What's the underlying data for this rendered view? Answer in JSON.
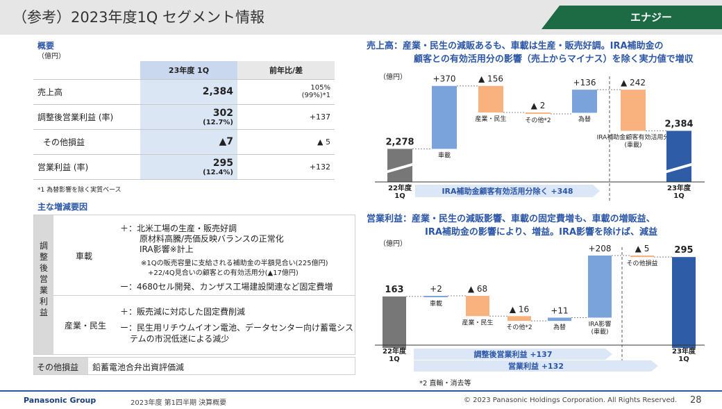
{
  "header": {
    "title": "（参考）2023年度1Q セグメント情報",
    "segment": "エナジー"
  },
  "overview": {
    "heading": "概要",
    "unit": "（億円）",
    "col_current": "23年度 1Q",
    "col_yoy": "前年比/差",
    "rows": [
      {
        "label": "売上高",
        "value": "2,384",
        "sub": "",
        "yoy": "105%",
        "yoy2": "(99%)*1"
      },
      {
        "label": "調整後営業利益 (率)",
        "value": "302",
        "sub": "(12.7%)",
        "yoy": "+137",
        "yoy2": ""
      },
      {
        "label": "その他損益",
        "value": "▲7",
        "sub": "",
        "yoy": "▲ 5",
        "yoy2": ""
      },
      {
        "label": "営業利益 (率)",
        "value": "295",
        "sub": "(12.4%)",
        "yoy": "+132",
        "yoy2": ""
      }
    ],
    "footnote": "*1 為替影響を除く実質ベース"
  },
  "factors": {
    "heading": "主な増減要因",
    "side_label": "調整後営業利益",
    "automotive": {
      "label": "車載",
      "plus_1": "＋：北米工場の生産・販売好調",
      "plus_2": "原材料高騰/売価反映バランスの正常化",
      "plus_3": "IRA影響※計上",
      "note_1": "※1Qの販売容量に支給される補助金の半額見合い(225億円)",
      "note_2": "+22/4Q見合いの顧客との有効活用分(▲17億円)",
      "minus": "ー：4680セル開発、カンザス工場建設関連など固定費増"
    },
    "industrial": {
      "label": "産業・民生",
      "plus": "＋：販売減に対応した固定費削減",
      "minus_1": "ー：民生用リチウムイオン電池、データセンター向け蓄電シス",
      "minus_2": "テムの市況低迷による減少"
    },
    "other": {
      "label": "その他損益",
      "text": "鉛蓄電池合弁出資評価減"
    }
  },
  "chart_sales": {
    "title_1": "売上高：産業・民生の減販あるも、車載は生産・販売好調。IRA補助金の",
    "title_2": "顧客との有効活用分の影響（売上からマイナス）を除く実力値で増収",
    "unit": "（億円）",
    "arrow_text": "IRA補助金顧客有効活用分除く +348"
  },
  "chart_profit": {
    "title_1": "営業利益：産業・民生の減販影響、車載の固定費増も、車載の増販益、",
    "title_2": "IRA補助金の影響により、増益。IRA影響を除けば、減益",
    "unit": "（億円）",
    "arrow_1": "調整後営業利益 +137",
    "arrow_2": "営業利益 +132",
    "footnote": "*2 直輸・消去等"
  },
  "chart_data": [
    {
      "type": "bar",
      "subtype": "waterfall",
      "title": "売上高",
      "ylabel": "億円",
      "categories": [
        "22年度1Q",
        "車載",
        "産業・民生",
        "その他*2",
        "為替",
        "IRA補助金顧客有効活用分(車載)",
        "23年度1Q"
      ],
      "values": [
        2278,
        370,
        -156,
        -2,
        136,
        -242,
        2384
      ],
      "labels": [
        "2,278",
        "+370",
        "▲ 156",
        "▲ 2",
        "+136",
        "▲ 242",
        "2,384"
      ],
      "kinds": [
        "total",
        "delta",
        "delta",
        "delta",
        "delta",
        "delta",
        "total"
      ],
      "colors": [
        "#777777",
        "#7aa3dc",
        "#f9b27e",
        "#f9b27e",
        "#7aa3dc",
        "#f9b27e",
        "#2e5ca6"
      ]
    },
    {
      "type": "bar",
      "subtype": "waterfall",
      "title": "営業利益",
      "ylabel": "億円",
      "categories": [
        "22年度1Q",
        "車載",
        "産業・民生",
        "その他*2",
        "為替",
        "IRA影響(車載)",
        "その他損益",
        "23年度1Q"
      ],
      "values": [
        163,
        2,
        -68,
        -16,
        11,
        208,
        -5,
        295
      ],
      "labels": [
        "163",
        "+2",
        "▲ 68",
        "▲ 16",
        "+11",
        "+208",
        "▲ 5",
        "295"
      ],
      "kinds": [
        "total",
        "delta",
        "delta",
        "delta",
        "delta",
        "delta",
        "delta",
        "total"
      ],
      "colors": [
        "#777777",
        "#7aa3dc",
        "#f9b27e",
        "#f9b27e",
        "#7aa3dc",
        "#7aa3dc",
        "#f9b27e",
        "#2e5ca6"
      ]
    }
  ],
  "footer": {
    "brand": "Panasonic Group",
    "doc": "2023年度 第1四半期 決算概要",
    "copyright": "© 2023 Panasonic Holdings Corporation. All Rights Reserved.",
    "page": "28"
  }
}
